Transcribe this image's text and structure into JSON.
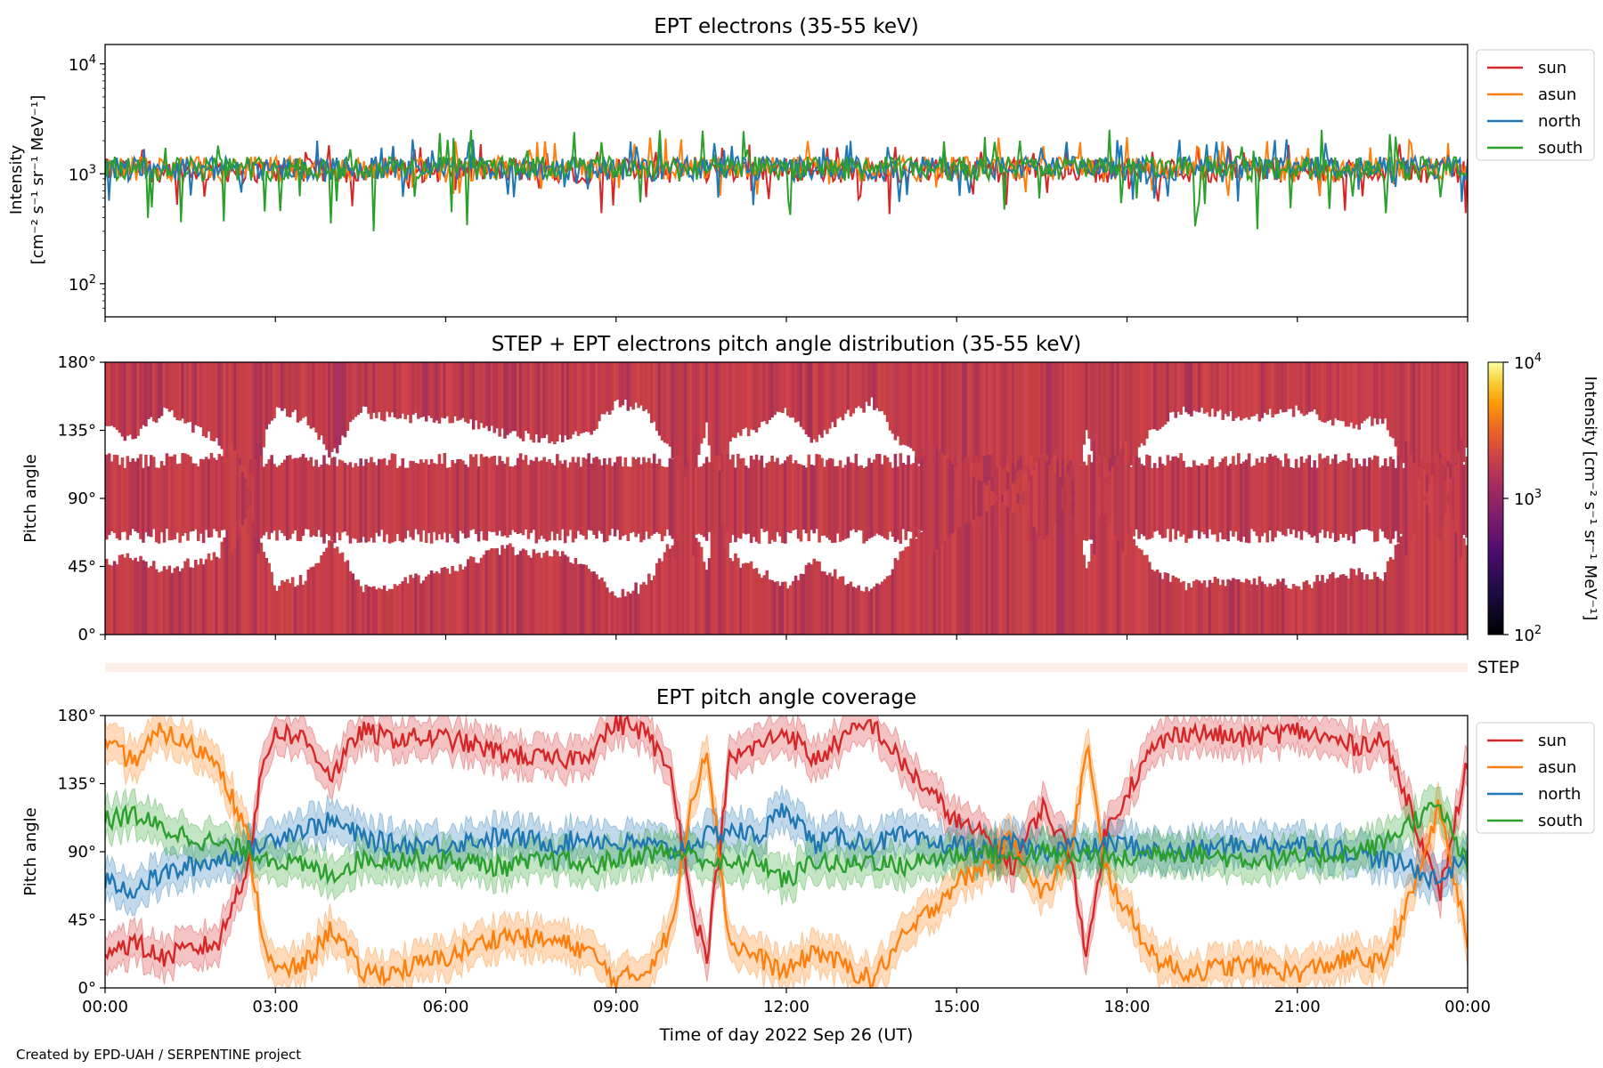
{
  "credit": "Created by EPD-UAH / SERPENTINE project",
  "colors": {
    "sun": "#d62728",
    "asun": "#ff7f0e",
    "north": "#1f77b4",
    "south": "#2ca02c",
    "step_strip": "#fdeee8"
  },
  "chart_data": [
    {
      "type": "line",
      "title": "EPT electrons (35-55 keV)",
      "ylabel_line1": "Intensity",
      "ylabel_line2": "[cm⁻² s⁻¹ sr⁻¹ MeV⁻¹]",
      "yscale": "log",
      "ylim": [
        50,
        15000
      ],
      "yticks": [
        {
          "value": 100,
          "base": "10",
          "exp": "2"
        },
        {
          "value": 1000,
          "base": "10",
          "exp": "3"
        },
        {
          "value": 10000,
          "base": "10",
          "exp": "4"
        }
      ],
      "xlim": [
        0,
        24
      ],
      "series": [
        {
          "name": "sun",
          "color": "#d62728",
          "typical": 1100,
          "spread_low": 0.38,
          "spread_high": 1.7
        },
        {
          "name": "asun",
          "color": "#ff7f0e",
          "typical": 1150,
          "spread_low": 0.5,
          "spread_high": 1.9
        },
        {
          "name": "north",
          "color": "#1f77b4",
          "typical": 1150,
          "spread_low": 0.45,
          "spread_high": 1.8
        },
        {
          "name": "south",
          "color": "#2ca02c",
          "typical": 1150,
          "spread_low": 0.25,
          "spread_high": 2.2
        }
      ],
      "legend": {
        "placement": "outside-right-top",
        "entries": [
          "sun",
          "asun",
          "north",
          "south"
        ]
      },
      "grid": false
    },
    {
      "type": "heatmap",
      "title": "STEP + EPT electrons pitch angle distribution (35-55 keV)",
      "ylabel": "Pitch angle",
      "ylim": [
        0,
        180
      ],
      "yticks": [
        "0°",
        "45°",
        "90°",
        "135°",
        "180°"
      ],
      "xlim": [
        0,
        24
      ],
      "colorbar": {
        "scale": "log",
        "range": [
          100,
          10000
        ],
        "ticks": [
          {
            "base": "10",
            "exp": "2"
          },
          {
            "base": "10",
            "exp": "3"
          },
          {
            "base": "10",
            "exp": "4"
          }
        ],
        "label": "Intensity [cm⁻² s⁻¹ sr⁻¹ MeV⁻¹]",
        "colormap": "inferno"
      },
      "typical_intensity": 1100
    },
    {
      "type": "strip",
      "label": "STEP"
    },
    {
      "type": "line",
      "title": "EPT pitch angle coverage",
      "ylabel": "Pitch angle",
      "xlabel": "Time of day 2022 Sep 26 (UT)",
      "ylim": [
        0,
        180
      ],
      "yticks": [
        "0°",
        "45°",
        "90°",
        "135°",
        "180°"
      ],
      "xlim": [
        0,
        24
      ],
      "xticks": [
        "00:00",
        "03:00",
        "06:00",
        "09:00",
        "12:00",
        "15:00",
        "18:00",
        "21:00",
        "00:00"
      ],
      "series": [
        {
          "name": "sun",
          "color": "#d62728",
          "x": [
            0,
            0.5,
            1,
            1.5,
            2,
            2.5,
            2.8,
            3,
            3.5,
            4,
            4.5,
            5,
            6,
            7,
            8,
            8.5,
            9,
            9.5,
            10,
            10.3,
            10.6,
            11,
            11.5,
            12,
            12.5,
            13,
            13.5,
            14,
            14.5,
            15,
            15.5,
            16,
            16.5,
            17,
            17.3,
            17.6,
            18,
            18.5,
            19,
            20,
            21,
            22,
            22.5,
            23,
            23.5,
            24
          ],
          "y": [
            25,
            30,
            20,
            25,
            30,
            80,
            150,
            170,
            165,
            140,
            170,
            165,
            165,
            155,
            150,
            155,
            175,
            170,
            140,
            60,
            20,
            150,
            160,
            170,
            150,
            165,
            175,
            150,
            130,
            110,
            100,
            80,
            120,
            90,
            20,
            100,
            130,
            160,
            170,
            165,
            170,
            160,
            165,
            120,
            60,
            150
          ]
        },
        {
          "name": "asun",
          "color": "#ff7f0e",
          "x": [
            0,
            0.5,
            1,
            1.5,
            2,
            2.5,
            2.8,
            3,
            3.5,
            4,
            4.5,
            5,
            6,
            7,
            8,
            8.5,
            9,
            9.5,
            10,
            10.3,
            10.6,
            11,
            11.5,
            12,
            12.5,
            13,
            13.5,
            14,
            14.5,
            15,
            15.5,
            16,
            16.5,
            17,
            17.3,
            17.6,
            18,
            18.5,
            19,
            20,
            21,
            22,
            22.5,
            23,
            23.5,
            24
          ],
          "y": [
            160,
            150,
            170,
            160,
            150,
            100,
            30,
            10,
            15,
            40,
            10,
            10,
            20,
            35,
            30,
            25,
            5,
            10,
            40,
            120,
            160,
            30,
            20,
            10,
            25,
            15,
            5,
            30,
            50,
            70,
            80,
            100,
            60,
            90,
            160,
            80,
            50,
            20,
            10,
            15,
            10,
            20,
            15,
            60,
            120,
            30
          ]
        },
        {
          "name": "north",
          "color": "#1f77b4",
          "x": [
            0,
            0.5,
            1,
            1.5,
            2,
            2.5,
            2.8,
            3,
            3.5,
            4,
            4.5,
            5,
            6,
            7,
            8,
            8.5,
            9,
            9.5,
            10,
            10.3,
            10.6,
            11,
            11.5,
            12,
            12.5,
            13,
            13.5,
            14,
            14.5,
            15,
            15.5,
            16,
            16.5,
            17,
            17.3,
            17.6,
            18,
            18.5,
            19,
            20,
            21,
            22,
            22.5,
            23,
            23.5,
            24
          ],
          "y": [
            70,
            65,
            75,
            80,
            85,
            90,
            95,
            100,
            105,
            110,
            100,
            95,
            95,
            100,
            95,
            100,
            95,
            95,
            90,
            95,
            100,
            105,
            100,
            120,
            95,
            100,
            95,
            100,
            95,
            95,
            90,
            95,
            90,
            95,
            90,
            95,
            95,
            90,
            90,
            95,
            95,
            90,
            85,
            80,
            70,
            90
          ]
        },
        {
          "name": "south",
          "color": "#2ca02c",
          "x": [
            0,
            0.5,
            1,
            1.5,
            2,
            2.5,
            2.8,
            3,
            3.5,
            4,
            4.5,
            5,
            6,
            7,
            8,
            8.5,
            9,
            9.5,
            10,
            10.3,
            10.6,
            11,
            11.5,
            12,
            12.5,
            13,
            13.5,
            14,
            14.5,
            15,
            15.5,
            16,
            16.5,
            17,
            17.3,
            17.6,
            18,
            18.5,
            19,
            20,
            21,
            22,
            22.5,
            23,
            23.5,
            24
          ],
          "y": [
            110,
            115,
            105,
            100,
            95,
            90,
            88,
            85,
            80,
            75,
            85,
            85,
            85,
            80,
            85,
            80,
            85,
            88,
            90,
            88,
            85,
            80,
            85,
            70,
            85,
            80,
            85,
            80,
            85,
            88,
            90,
            85,
            90,
            85,
            90,
            85,
            85,
            90,
            90,
            85,
            85,
            90,
            95,
            110,
            120,
            80
          ]
        }
      ],
      "band_halfwidth_deg": 12,
      "legend": {
        "placement": "outside-right-top",
        "entries": [
          "sun",
          "asun",
          "north",
          "south"
        ]
      },
      "grid": false
    }
  ]
}
